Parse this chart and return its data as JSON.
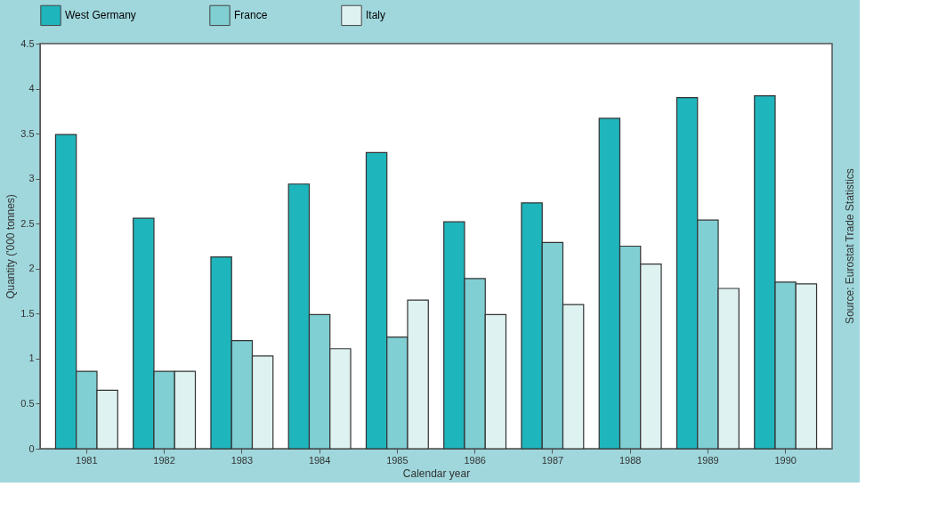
{
  "chart_data": {
    "type": "bar",
    "categories": [
      "1981",
      "1982",
      "1983",
      "1984",
      "1985",
      "1986",
      "1987",
      "1988",
      "1989",
      "1990"
    ],
    "series": [
      {
        "name": "West Germany",
        "color": "#1fb5bc",
        "values": [
          3.49,
          2.56,
          2.13,
          2.94,
          3.29,
          2.52,
          2.73,
          3.67,
          3.9,
          3.92
        ]
      },
      {
        "name": "France",
        "color": "#7fcfd3",
        "values": [
          0.86,
          0.86,
          1.2,
          1.49,
          1.24,
          1.89,
          2.29,
          2.25,
          2.54,
          1.85
        ]
      },
      {
        "name": "Italy",
        "color": "#dff2f2",
        "values": [
          0.65,
          0.86,
          1.03,
          1.11,
          1.65,
          1.49,
          1.6,
          2.05,
          1.78,
          1.83
        ]
      }
    ],
    "xlabel": "Calendar year",
    "ylabel": "Quantity ('000 tonnes)",
    "ylim": [
      0,
      4.5
    ],
    "yticks": [
      0,
      0.5,
      1,
      1.5,
      2,
      2.5,
      3,
      3.5,
      4,
      4.5
    ],
    "annotations": [
      "Source: Eurostat Trade Statistics"
    ],
    "legend": "top",
    "grid": false
  }
}
